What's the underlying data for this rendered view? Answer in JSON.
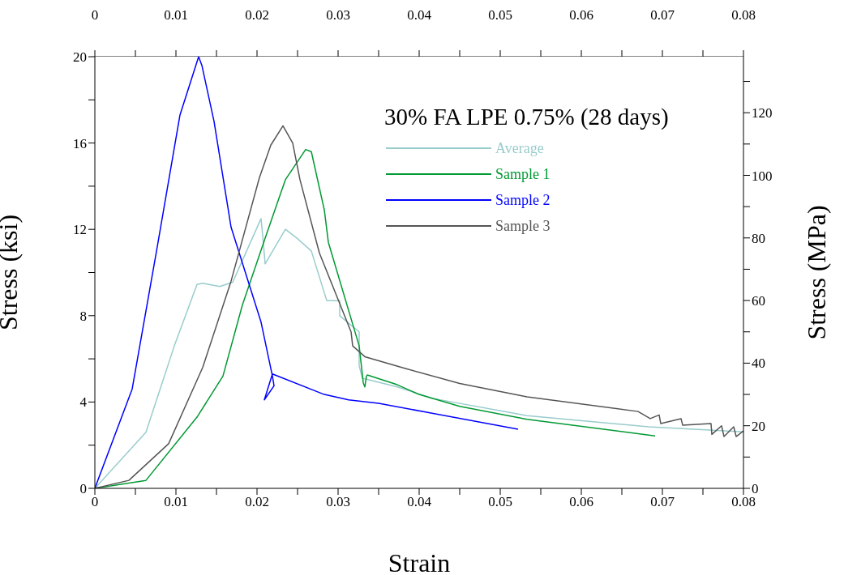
{
  "chart_data": {
    "type": "line",
    "legend_title": "30% FA LPE 0.75% (28 days)",
    "xlabel": "Strain",
    "ylabel": "Stress (ksi)",
    "y2label": "Stress (MPa)",
    "legend": "top right",
    "grid": false,
    "marker": "none",
    "line_style": "solid",
    "xlim": [
      0,
      0.08
    ],
    "xticks": [
      0,
      {
        "value": 0.005,
        "label": null
      },
      0.01,
      {
        "value": 0.015,
        "label": null
      },
      0.02,
      {
        "value": 0.025,
        "label": null
      },
      0.03,
      {
        "value": 0.035,
        "label": null
      },
      0.04,
      {
        "value": 0.045,
        "label": null
      },
      0.05,
      {
        "value": 0.055,
        "label": null
      },
      0.06,
      {
        "value": 0.065,
        "label": null
      },
      0.07,
      {
        "value": 0.075,
        "label": null
      },
      0.08
    ],
    "x2lim": [
      0,
      0.08
    ],
    "x2ticks": [
      0,
      {
        "value": 0.005,
        "label": null
      },
      0.01,
      {
        "value": 0.015,
        "label": null
      },
      0.02,
      {
        "value": 0.025,
        "label": null
      },
      0.03,
      {
        "value": 0.035,
        "label": null
      },
      0.04,
      {
        "value": 0.045,
        "label": null
      },
      0.05,
      {
        "value": 0.055,
        "label": null
      },
      0.06,
      {
        "value": 0.065,
        "label": null
      },
      0.07,
      {
        "value": 0.075,
        "label": null
      },
      0.08
    ],
    "ylim": [
      0,
      20
    ],
    "yticks": [
      0,
      {
        "value": 2,
        "label": null
      },
      4,
      {
        "value": 6,
        "label": null
      },
      8,
      {
        "value": 10,
        "label": null
      },
      12,
      {
        "value": 14,
        "label": null
      },
      16,
      {
        "value": 18,
        "label": null
      },
      20
    ],
    "y2lim": [
      0,
      137.9
    ],
    "y2ticks": [
      0,
      {
        "value": 10,
        "label": null
      },
      20,
      {
        "value": 30,
        "label": null
      },
      40,
      {
        "value": 50,
        "label": null
      },
      60,
      {
        "value": 70,
        "label": null
      },
      80,
      {
        "value": 90,
        "label": null
      },
      100,
      {
        "value": 110,
        "label": null
      },
      120,
      {
        "value": 130,
        "label": null
      }
    ],
    "series": [
      {
        "name": "Average",
        "color": "#99cccc",
        "x": [
          0,
          0.0063,
          0.0098,
          0.0126,
          0.0133,
          0.0154,
          0.017,
          0.0205,
          0.0208,
          0.021,
          0.0235,
          0.0249,
          0.0267,
          0.0286,
          0.0302,
          0.0302,
          0.0326,
          0.0326,
          0.033,
          0.0373,
          0.0416,
          0.0533,
          0.0683,
          0.08
        ],
        "values": [
          0,
          2.6,
          6.6,
          9.45,
          9.5,
          9.35,
          9.55,
          12.5,
          11.3,
          10.4,
          12.0,
          11.6,
          11.0,
          8.7,
          8.7,
          8.0,
          7.25,
          5.67,
          5.1,
          4.7,
          4.17,
          3.37,
          2.85,
          2.62
        ]
      },
      {
        "name": "Sample 1",
        "color": "#009933",
        "x": [
          0,
          0.0063,
          0.0126,
          0.0158,
          0.0182,
          0.0211,
          0.0235,
          0.026,
          0.0267,
          0.0283,
          0.0288,
          0.0326,
          0.0331,
          0.0333,
          0.0335,
          0.0336,
          0.0373,
          0.04,
          0.045,
          0.0533,
          0.0691
        ],
        "values": [
          0,
          0.37,
          3.3,
          5.2,
          8.5,
          11.7,
          14.3,
          15.7,
          15.6,
          12.9,
          11.4,
          6.6,
          4.9,
          4.7,
          5.2,
          5.25,
          4.8,
          4.35,
          3.8,
          3.2,
          2.43
        ]
      },
      {
        "name": "Sample 2",
        "color": "#0000ff",
        "x": [
          0,
          0.0046,
          0.0077,
          0.0105,
          0.0128,
          0.0132,
          0.0147,
          0.0168,
          0.0205,
          0.0219,
          0.0221,
          0.0209,
          0.0219,
          0.0283,
          0.0313,
          0.035,
          0.0522
        ],
        "values": [
          0,
          4.6,
          11.2,
          17.3,
          20,
          19.6,
          17.0,
          12.1,
          7.7,
          5.2,
          4.75,
          4.1,
          5.3,
          4.35,
          4.1,
          3.94,
          2.74
        ]
      },
      {
        "name": "Sample 3",
        "color": "#555555",
        "x": [
          0,
          0.0042,
          0.0091,
          0.0133,
          0.0168,
          0.0203,
          0.0217,
          0.0232,
          0.0244,
          0.0253,
          0.0277,
          0.0316,
          0.0318,
          0.0333,
          0.0383,
          0.045,
          0.0533,
          0.067,
          0.0685,
          0.0696,
          0.0698,
          0.0723,
          0.0725,
          0.076,
          0.0761,
          0.0773,
          0.0776,
          0.0788,
          0.0791,
          0.08
        ],
        "values": [
          0,
          0.37,
          2.07,
          5.6,
          9.6,
          14.4,
          15.9,
          16.8,
          16.0,
          14.3,
          10.9,
          7.25,
          6.6,
          6.1,
          5.55,
          4.86,
          4.24,
          3.56,
          3.23,
          3.4,
          3.0,
          3.23,
          2.93,
          3.0,
          2.5,
          2.9,
          2.4,
          2.85,
          2.4,
          2.66
        ]
      }
    ]
  }
}
